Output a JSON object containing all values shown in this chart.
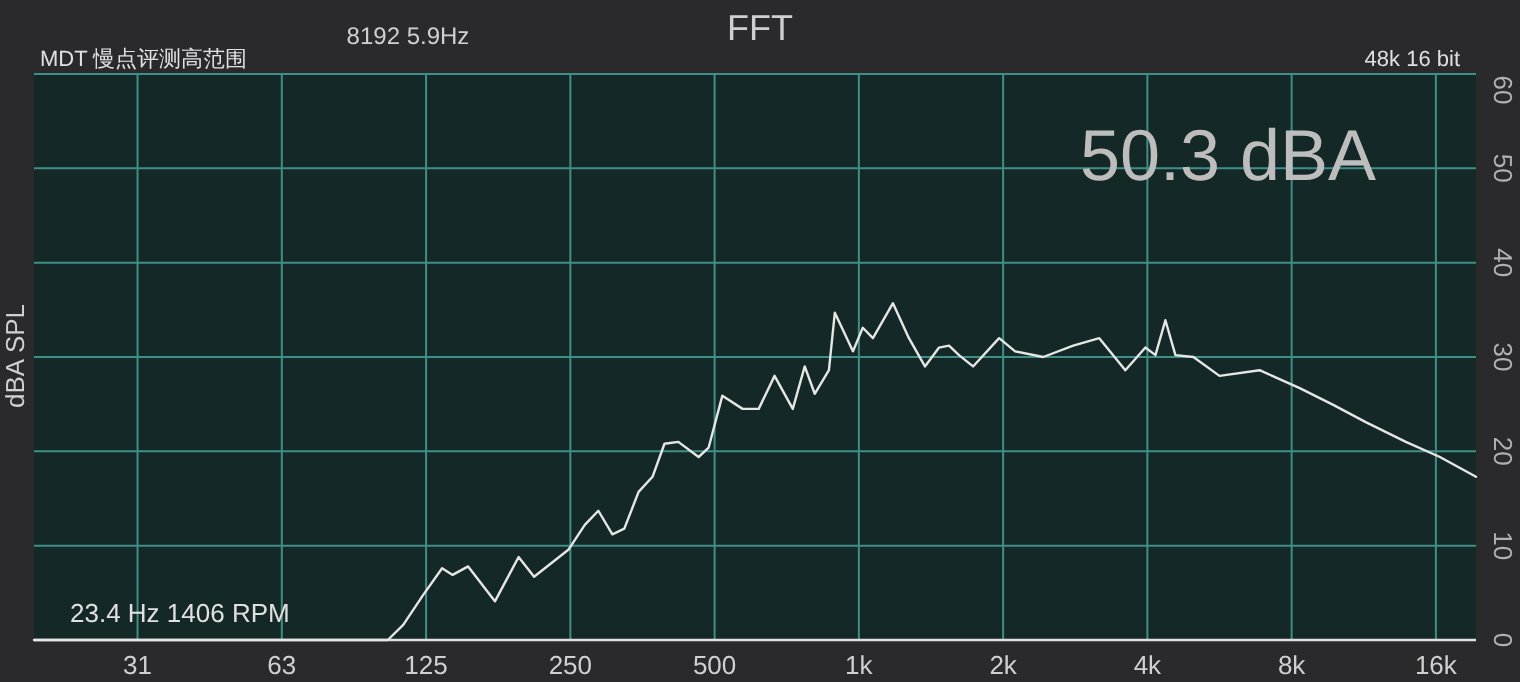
{
  "chart_data": {
    "type": "line",
    "title": "FFT",
    "ylabel": "dBA SPL",
    "annotations": [
      "8192  5.9Hz",
      "MDT 慢点评测高范围",
      "48k 16 bit",
      "50.3 dBA",
      "23.4 Hz 1406 RPM"
    ],
    "log": "x",
    "grid": true,
    "marker": "none",
    "line_style": "solid",
    "xlim": [
      19,
      19400
    ],
    "xticks": [
      {
        "value": 31.25,
        "label": "31"
      },
      {
        "value": 62.5,
        "label": "63"
      },
      125,
      250,
      500,
      {
        "value": 1000,
        "label": "1k"
      },
      {
        "value": 2000,
        "label": "2k"
      },
      {
        "value": 4000,
        "label": "4k"
      },
      {
        "value": 8000,
        "label": "8k"
      },
      {
        "value": 16000,
        "label": "16k"
      }
    ],
    "ylim": [
      0,
      60
    ],
    "yticks": [
      0,
      10,
      20,
      30,
      40,
      50,
      60
    ],
    "series": [
      {
        "color": "#e6e6e6",
        "x": [
          19,
          104,
          112,
          123,
          135,
          142,
          153,
          174,
          195,
          210,
          248,
          268,
          286,
          306,
          324,
          347,
          371,
          393,
          420,
          463,
          486,
          519,
          572,
          618,
          667,
          728,
          771,
          809,
          866,
          891,
          972,
          1019,
          1070,
          1178,
          1272,
          1374,
          1470,
          1542,
          1618,
          1731,
          1962,
          2119,
          2425,
          2801,
          3175,
          3598,
          3962,
          4158,
          4362,
          4577,
          4990,
          5657,
          6858,
          8316,
          9793,
          11420,
          13850,
          16310,
          19400
        ],
        "values": [
          0,
          0,
          1.6,
          4.7,
          7.6,
          6.9,
          7.8,
          4.1,
          8.8,
          6.7,
          9.6,
          12.2,
          13.7,
          11.2,
          11.8,
          15.7,
          17.3,
          20.8,
          21.0,
          19.4,
          20.4,
          25.9,
          24.5,
          24.5,
          28.0,
          24.5,
          29.0,
          26.1,
          28.6,
          34.7,
          30.6,
          33.1,
          32.0,
          35.7,
          32.0,
          29.0,
          31.0,
          31.2,
          30.2,
          29.0,
          32.0,
          30.6,
          30.0,
          31.2,
          32.0,
          28.6,
          31.0,
          30.2,
          33.9,
          30.2,
          30.0,
          28.0,
          28.6,
          26.7,
          24.9,
          23.1,
          21.0,
          19.4,
          17.3
        ]
      }
    ]
  }
}
